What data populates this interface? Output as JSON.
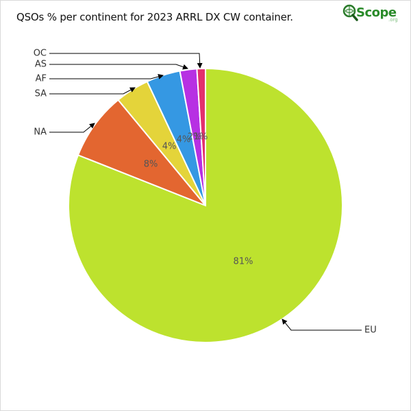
{
  "chart_data": {
    "type": "pie",
    "title": "QSOs % per continent for 2023 ARRL DX CW container.",
    "slices": [
      {
        "label": "EU",
        "value": 81,
        "pct_label": "81%",
        "color": "#bde22e"
      },
      {
        "label": "NA",
        "value": 8,
        "pct_label": "8%",
        "color": "#e36630"
      },
      {
        "label": "SA",
        "value": 4,
        "pct_label": "4%",
        "color": "#e4d43a"
      },
      {
        "label": "AF",
        "value": 4,
        "pct_label": "4%",
        "color": "#3598e3"
      },
      {
        "label": "AS",
        "value": 2,
        "pct_label": "2%",
        "color": "#b730e3"
      },
      {
        "label": "OC",
        "value": 1,
        "pct_label": "1%",
        "color": "#e3306d"
      }
    ]
  },
  "logo": {
    "text": "Scope",
    "sub": ".org",
    "icon": "magnifier-globe-icon"
  }
}
